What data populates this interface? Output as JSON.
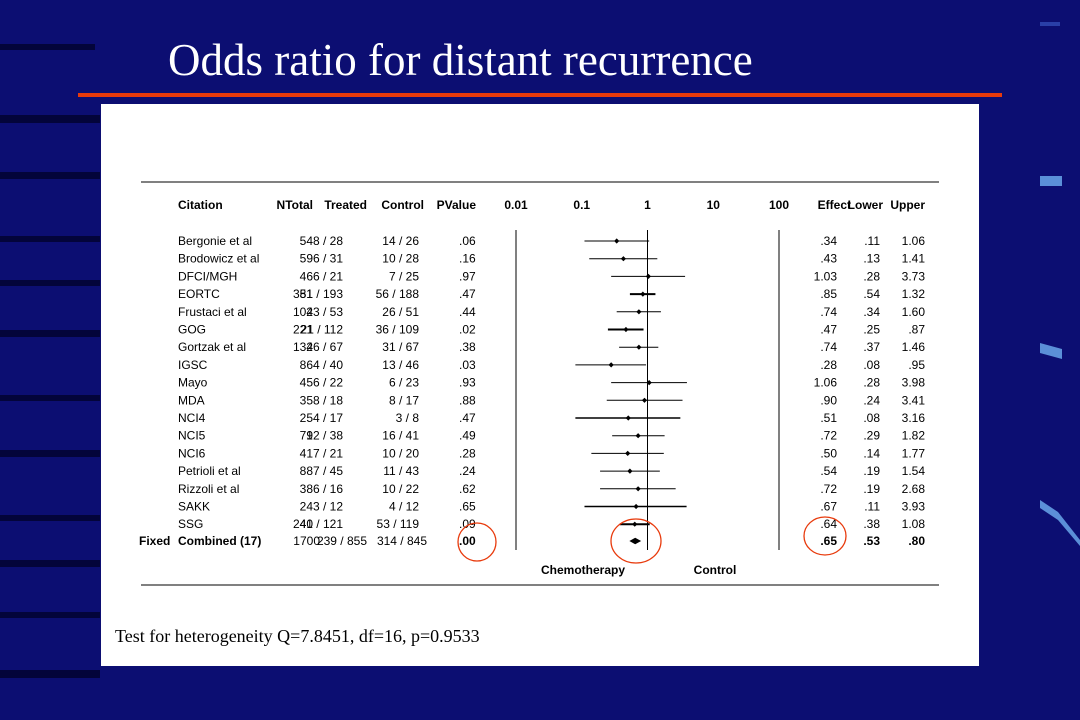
{
  "slide": {
    "title": "Odds ratio for distant recurrence",
    "heterogeneity": "Test for heterogeneity Q=7.8451, df=16, p=0.9533"
  },
  "colors": {
    "background": "#0c0e72",
    "title_rule": "#e83a0c",
    "highlight_circle": "#e83a0c",
    "panel": "#ffffff"
  },
  "chart_data": {
    "type": "forest",
    "x_scale": "log",
    "xlim": [
      0.01,
      100
    ],
    "x_ticks": [
      "0.01",
      "0.1",
      "1",
      "10",
      "100"
    ],
    "x_tick_values": [
      0.01,
      0.1,
      1,
      10,
      100
    ],
    "headers": {
      "model": "",
      "citation": "Citation",
      "ntotal": "NTotal",
      "treated": "Treated",
      "control": "Control",
      "pvalue": "PValue",
      "effect": "Effect",
      "lower": "Lower",
      "upper": "Upper"
    },
    "left_label": "Chemotherapy",
    "right_label": "Control",
    "studies": [
      {
        "citation": "Bergonie et al",
        "ntotal": "54",
        "treated": "8 / 28",
        "control": "14 / 26",
        "pvalue": ".06",
        "effect": ".34",
        "lower": ".11",
        "upper": "1.06",
        "or": 0.34,
        "lo": 0.11,
        "hi": 1.06
      },
      {
        "citation": "Brodowicz et al",
        "ntotal": "59",
        "treated": "6 / 31",
        "control": "10 / 28",
        "pvalue": ".16",
        "effect": ".43",
        "lower": ".13",
        "upper": "1.41",
        "or": 0.43,
        "lo": 0.13,
        "hi": 1.41
      },
      {
        "citation": "DFCI/MGH",
        "ntotal": "46",
        "treated": "6 / 21",
        "control": "7 / 25",
        "pvalue": ".97",
        "effect": "1.03",
        "lower": ".28",
        "upper": "3.73",
        "or": 1.03,
        "lo": 0.28,
        "hi": 3.73
      },
      {
        "citation": "EORTC",
        "ntotal": "381",
        "treated": "51 / 193",
        "control": "56 / 188",
        "pvalue": ".47",
        "effect": ".85",
        "lower": ".54",
        "upper": "1.32",
        "or": 0.85,
        "lo": 0.54,
        "hi": 1.32
      },
      {
        "citation": "Frustaci  et al",
        "ntotal": "104",
        "treated": "23 / 53",
        "control": "26 / 51",
        "pvalue": ".44",
        "effect": ".74",
        "lower": ".34",
        "upper": "1.60",
        "or": 0.74,
        "lo": 0.34,
        "hi": 1.6
      },
      {
        "citation": "GOG",
        "ntotal": "221",
        "treated": "21 / 112",
        "control": "36 / 109",
        "pvalue": ".02",
        "effect": ".47",
        "lower": ".25",
        "upper": ".87",
        "or": 0.47,
        "lo": 0.25,
        "hi": 0.87
      },
      {
        "citation": "Gortzak et al",
        "ntotal": "134",
        "treated": "26 / 67",
        "control": "31 / 67",
        "pvalue": ".38",
        "effect": ".74",
        "lower": ".37",
        "upper": "1.46",
        "or": 0.74,
        "lo": 0.37,
        "hi": 1.46
      },
      {
        "citation": "IGSC",
        "ntotal": "86",
        "treated": "4 / 40",
        "control": "13 / 46",
        "pvalue": ".03",
        "effect": ".28",
        "lower": ".08",
        "upper": ".95",
        "or": 0.28,
        "lo": 0.08,
        "hi": 0.95
      },
      {
        "citation": "Mayo",
        "ntotal": "45",
        "treated": "6 / 22",
        "control": "6 / 23",
        "pvalue": ".93",
        "effect": "1.06",
        "lower": ".28",
        "upper": "3.98",
        "or": 1.06,
        "lo": 0.28,
        "hi": 3.98
      },
      {
        "citation": "MDA",
        "ntotal": "35",
        "treated": "8 / 18",
        "control": "8 / 17",
        "pvalue": ".88",
        "effect": ".90",
        "lower": ".24",
        "upper": "3.41",
        "or": 0.9,
        "lo": 0.24,
        "hi": 3.41
      },
      {
        "citation": "NCI4",
        "ntotal": "25",
        "treated": "4 / 17",
        "control": "3 / 8",
        "pvalue": ".47",
        "effect": ".51",
        "lower": ".08",
        "upper": "3.16",
        "or": 0.51,
        "lo": 0.08,
        "hi": 3.16
      },
      {
        "citation": "NCI5",
        "ntotal": "79",
        "treated": "12 / 38",
        "control": "16 / 41",
        "pvalue": ".49",
        "effect": ".72",
        "lower": ".29",
        "upper": "1.82",
        "or": 0.72,
        "lo": 0.29,
        "hi": 1.82
      },
      {
        "citation": "NCI6",
        "ntotal": "41",
        "treated": "7 / 21",
        "control": "10 / 20",
        "pvalue": ".28",
        "effect": ".50",
        "lower": ".14",
        "upper": "1.77",
        "or": 0.5,
        "lo": 0.14,
        "hi": 1.77
      },
      {
        "citation": "Petrioli et al",
        "ntotal": "88",
        "treated": "7 / 45",
        "control": "11 / 43",
        "pvalue": ".24",
        "effect": ".54",
        "lower": ".19",
        "upper": "1.54",
        "or": 0.54,
        "lo": 0.19,
        "hi": 1.54
      },
      {
        "citation": "Rizzoli et al",
        "ntotal": "38",
        "treated": "6 / 16",
        "control": "10 / 22",
        "pvalue": ".62",
        "effect": ".72",
        "lower": ".19",
        "upper": "2.68",
        "or": 0.72,
        "lo": 0.19,
        "hi": 2.68
      },
      {
        "citation": "SAKK",
        "ntotal": "24",
        "treated": "3 / 12",
        "control": "4 / 12",
        "pvalue": ".65",
        "effect": ".67",
        "lower": ".11",
        "upper": "3.93",
        "or": 0.67,
        "lo": 0.11,
        "hi": 3.93
      },
      {
        "citation": "SSG",
        "ntotal": "240",
        "treated": "41 / 121",
        "control": "53 / 119",
        "pvalue": ".09",
        "effect": ".64",
        "lower": ".38",
        "upper": "1.08",
        "or": 0.64,
        "lo": 0.38,
        "hi": 1.08
      }
    ],
    "combined": {
      "model": "Fixed",
      "citation": "Combined (17)",
      "ntotal": "1700",
      "treated": "239 / 855",
      "control": "314 / 845",
      "pvalue": ".00",
      "effect": ".65",
      "lower": ".53",
      "upper": ".80",
      "or": 0.65,
      "lo": 0.53,
      "hi": 0.8
    },
    "highlighted": [
      "combined pvalue",
      "combined marker",
      "combined effect"
    ]
  }
}
